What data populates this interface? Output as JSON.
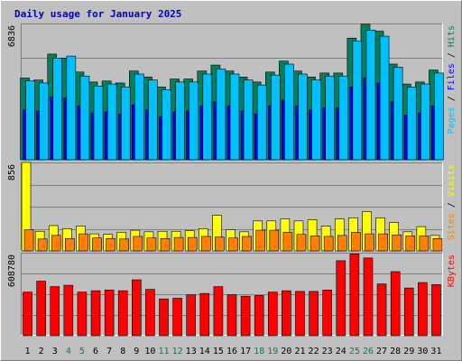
{
  "chart_data": {
    "type": "bar",
    "title": "Daily usage for January 2025",
    "categories": [
      "1",
      "2",
      "3",
      "4",
      "5",
      "6",
      "7",
      "8",
      "9",
      "10",
      "11",
      "12",
      "13",
      "14",
      "15",
      "16",
      "17",
      "18",
      "19",
      "20",
      "21",
      "22",
      "23",
      "24",
      "25",
      "26",
      "27",
      "28",
      "29",
      "30",
      "31"
    ],
    "weekend_days": [
      4,
      5,
      11,
      12,
      18,
      19,
      25,
      26
    ],
    "colors": {
      "hits": "#00805c",
      "files": "#0000ff",
      "pages": "#00c0ff",
      "visits": "#ffff00",
      "sites": "#ff8000",
      "kbytes": "#ff0000",
      "plot_bg": "#c0c0c0",
      "title": "#0000c0",
      "weekend": "#00805c"
    },
    "panels": [
      {
        "name": "hits-files-pages",
        "max_label": "6836",
        "ylim": [
          0,
          6836
        ],
        "legend": [
          {
            "label": "Pages",
            "color": "#00c0ff"
          },
          {
            "label": "Files",
            "color": "#0000ff"
          },
          {
            "label": "Hits",
            "color": "#00805c"
          }
        ],
        "series": [
          {
            "name": "Hits",
            "values": [
              4100,
              4000,
              5300,
              5100,
              4400,
              3900,
              3950,
              3850,
              4450,
              4150,
              3650,
              4050,
              4050,
              4450,
              4750,
              4450,
              4150,
              3900,
              4400,
              4950,
              4450,
              4150,
              4350,
              4350,
              6100,
              6800,
              6450,
              4800,
              3800,
              3900,
              4500
            ]
          },
          {
            "name": "Files",
            "values": [
              2500,
              2450,
              3150,
              3100,
              2700,
              2350,
              2400,
              2300,
              2750,
              2500,
              2150,
              2400,
              2450,
              2700,
              2900,
              2700,
              2450,
              2300,
              2700,
              3000,
              2700,
              2500,
              2600,
              2600,
              3650,
              4100,
              3850,
              2900,
              2250,
              2350,
              2700
            ]
          },
          {
            "name": "Pages",
            "values": [
              3950,
              3850,
              5100,
              5200,
              4200,
              3700,
              3800,
              3650,
              4300,
              4000,
              3500,
              3900,
              3900,
              4300,
              4550,
              4300,
              4000,
              3750,
              4250,
              4800,
              4300,
              4000,
              4200,
              4200,
              5950,
              6500,
              6200,
              4650,
              3650,
              3800,
              4350
            ]
          }
        ]
      },
      {
        "name": "visits-sites",
        "max_label": "856",
        "ylim": [
          0,
          856
        ],
        "legend": [
          {
            "label": "Sites",
            "color": "#ff8000"
          },
          {
            "label": "Visits",
            "color": "#ffff00"
          }
        ],
        "series": [
          {
            "name": "Visits",
            "values": [
              856,
              190,
              245,
              215,
              240,
              165,
              160,
              180,
              200,
              185,
              190,
              190,
              195,
              215,
              345,
              205,
              185,
              290,
              290,
              310,
              290,
              300,
              240,
              310,
              320,
              380,
              320,
              275,
              185,
              235,
              150
            ]
          },
          {
            "name": "Sites",
            "values": [
              205,
              115,
              150,
              120,
              165,
              125,
              120,
              115,
              140,
              125,
              120,
              130,
              130,
              140,
              135,
              125,
              140,
              200,
              200,
              180,
              160,
              145,
              140,
              150,
              180,
              165,
              165,
              155,
              145,
              145,
              120
            ]
          }
        ]
      },
      {
        "name": "kbytes",
        "max_label": "608780",
        "ylim": [
          0,
          608780
        ],
        "legend": [
          {
            "label": "KBytes",
            "color": "#ff0000"
          }
        ],
        "series": [
          {
            "name": "KBytes",
            "values": [
              320000,
              400000,
              360000,
              370000,
              320000,
              330000,
              335000,
              330000,
              410000,
              340000,
              270000,
              275000,
              300000,
              310000,
              360000,
              300000,
              290000,
              295000,
              320000,
              330000,
              325000,
              325000,
              335000,
              550000,
              600000,
              570000,
              380000,
              470000,
              350000,
              390000,
              375000
            ]
          }
        ]
      }
    ]
  }
}
